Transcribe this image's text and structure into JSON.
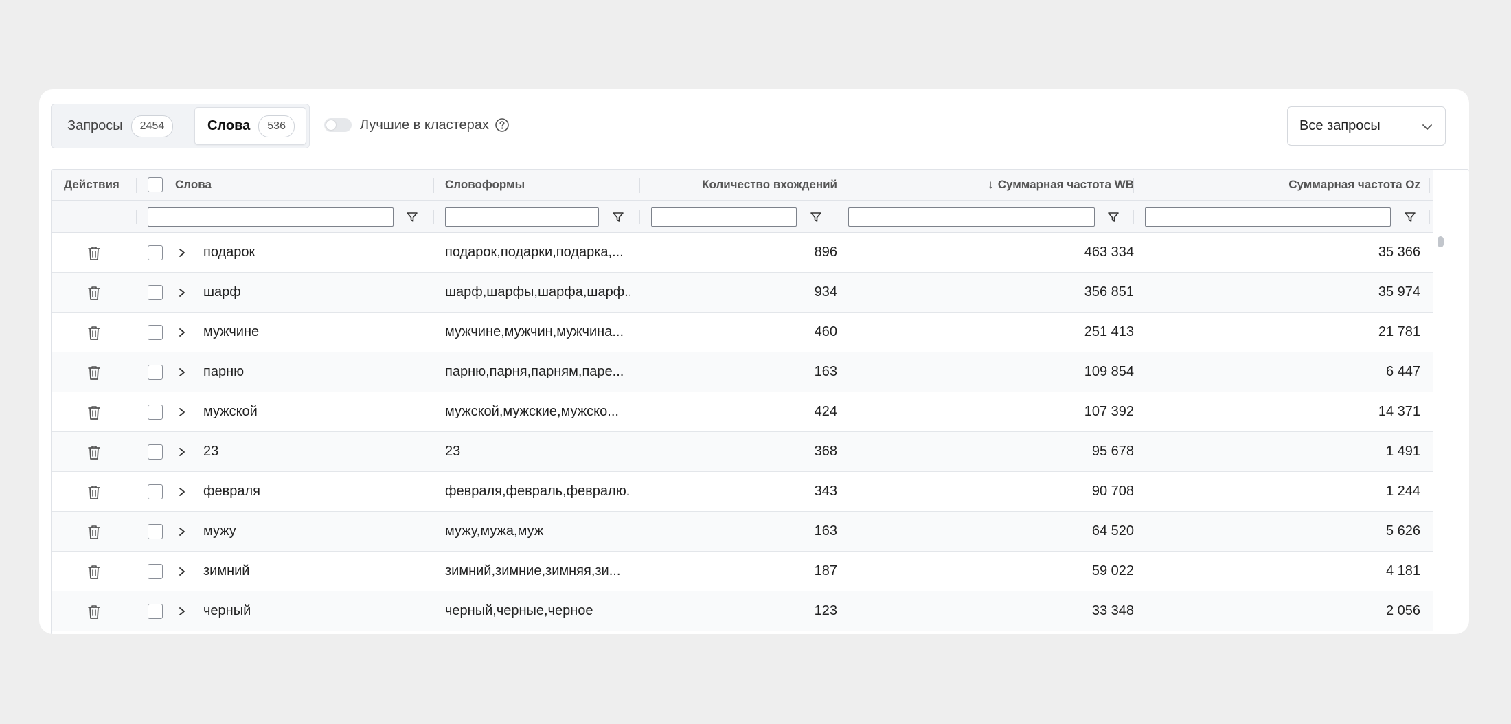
{
  "tabs": [
    {
      "label": "Запросы",
      "count": "2454"
    },
    {
      "label": "Слова",
      "count": "536"
    }
  ],
  "toggle": {
    "label": "Лучшие в кластерах",
    "on": false
  },
  "filter_select": {
    "value": "Все запросы"
  },
  "columns": {
    "actions": "Действия",
    "words": "Слова",
    "forms": "Словоформы",
    "count": "Количество вхождений",
    "sort_arrow": "↓",
    "wb": "Суммарная частота WB",
    "oz": "Суммарная частота Oz"
  },
  "sorted_column": "wb",
  "rows": [
    {
      "word": "подарок",
      "forms": "подарок,подарки,подарка,...",
      "count": "896",
      "wb": "463 334",
      "oz": "35 366"
    },
    {
      "word": "шарф",
      "forms": "шарф,шарфы,шарфа,шарф...",
      "count": "934",
      "wb": "356 851",
      "oz": "35 974"
    },
    {
      "word": "мужчине",
      "forms": "мужчине,мужчин,мужчина...",
      "count": "460",
      "wb": "251 413",
      "oz": "21 781"
    },
    {
      "word": "парню",
      "forms": "парню,парня,парням,паре...",
      "count": "163",
      "wb": "109 854",
      "oz": "6 447"
    },
    {
      "word": "мужской",
      "forms": "мужской,мужские,мужско...",
      "count": "424",
      "wb": "107 392",
      "oz": "14 371"
    },
    {
      "word": "23",
      "forms": "23",
      "count": "368",
      "wb": "95 678",
      "oz": "1 491"
    },
    {
      "word": "февраля",
      "forms": "февраля,февраль,февралю...",
      "count": "343",
      "wb": "90 708",
      "oz": "1 244"
    },
    {
      "word": "мужу",
      "forms": "мужу,мужа,муж",
      "count": "163",
      "wb": "64 520",
      "oz": "5 626"
    },
    {
      "word": "зимний",
      "forms": "зимний,зимние,зимняя,зи...",
      "count": "187",
      "wb": "59 022",
      "oz": "4 181"
    },
    {
      "word": "черный",
      "forms": "черный,черные,черное",
      "count": "123",
      "wb": "33 348",
      "oz": "2 056"
    }
  ],
  "colors": {
    "background": "#eeeeee",
    "card": "#ffffff",
    "header": "#f6f7f9",
    "border": "#e0e3e8"
  }
}
